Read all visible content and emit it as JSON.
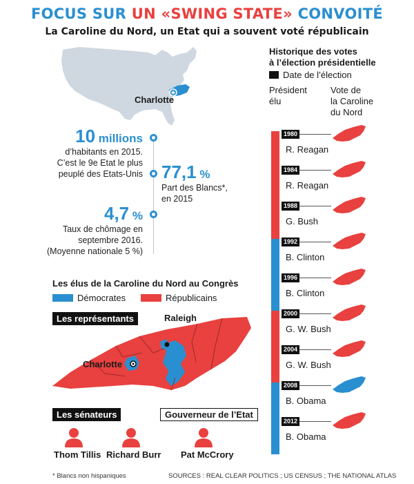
{
  "header": {
    "title_part1": "FOCUS SUR ",
    "title_part2": "UN «SWING STATE»",
    "title_part3": " CONVOITÉ",
    "subtitle": "La Caroline du Nord, un Etat qui a souvent voté républicain"
  },
  "map": {
    "city": "Charlotte"
  },
  "stats": [
    {
      "value": "10",
      "unit": " millions",
      "text": [
        "d’habitants en 2015.",
        "C’est le 9e Etat le plus",
        "peuplé des Etats-Unis"
      ]
    },
    {
      "value": "77,1",
      "unit": " %",
      "text": [
        "Part des Blancs*,",
        "en 2015"
      ]
    },
    {
      "value": "4,7",
      "unit": " %",
      "text": [
        "Taux de chômage en",
        "septembre  2016.",
        "(Moyenne nationale 5 %)"
      ]
    }
  ],
  "congress": {
    "title": "Les élus de la Caroline du Nord au Congrès",
    "legend_dem": "Démocrates",
    "legend_rep": "Républicains",
    "representatives_label": "Les représentants",
    "city_raleigh": "Raleigh",
    "city_charlotte": "Charlotte",
    "senators_label": "Les sénateurs",
    "governor_label": "Gouverneur de l’Etat",
    "senators": [
      "Thom Tillis",
      "Richard Burr"
    ],
    "governor": "Pat McCrory"
  },
  "history": {
    "title_line1": "Historique des votes",
    "title_line2": "à l’élection présidentielle",
    "legend_date": "Date de l’élection",
    "col_president": [
      "Président",
      "élu"
    ],
    "col_vote": [
      "Vote de",
      "la Caroline",
      "du Nord"
    ],
    "elections": [
      {
        "year": "1980",
        "president": "R. Reagan",
        "party": "rep",
        "nc_vote": "rep"
      },
      {
        "year": "1984",
        "president": "R. Reagan",
        "party": "rep",
        "nc_vote": "rep"
      },
      {
        "year": "1988",
        "president": "G. Bush",
        "party": "rep",
        "nc_vote": "rep"
      },
      {
        "year": "1992",
        "president": "B. Clinton",
        "party": "dem",
        "nc_vote": "rep"
      },
      {
        "year": "1996",
        "president": "B. Clinton",
        "party": "dem",
        "nc_vote": "rep"
      },
      {
        "year": "2000",
        "president": "G. W. Bush",
        "party": "rep",
        "nc_vote": "rep"
      },
      {
        "year": "2004",
        "president": "G. W. Bush",
        "party": "rep",
        "nc_vote": "rep"
      },
      {
        "year": "2008",
        "president": "B. Obama",
        "party": "dem",
        "nc_vote": "dem"
      },
      {
        "year": "2012",
        "president": "B. Obama",
        "party": "dem",
        "nc_vote": "rep"
      }
    ]
  },
  "colors": {
    "dem": "#2a8fd0",
    "rep": "#e8413f",
    "accent_blue": "#2a8fd0"
  },
  "icons": {
    "person": "person-icon",
    "state": "north-carolina-icon",
    "star": "star-icon"
  },
  "footer": {
    "footnote": "* Blancs non hispaniques",
    "sources": "SOURCES : REAL CLEAR POLITICS ; US CENSUS ; THE NATIONAL ATLAS"
  }
}
